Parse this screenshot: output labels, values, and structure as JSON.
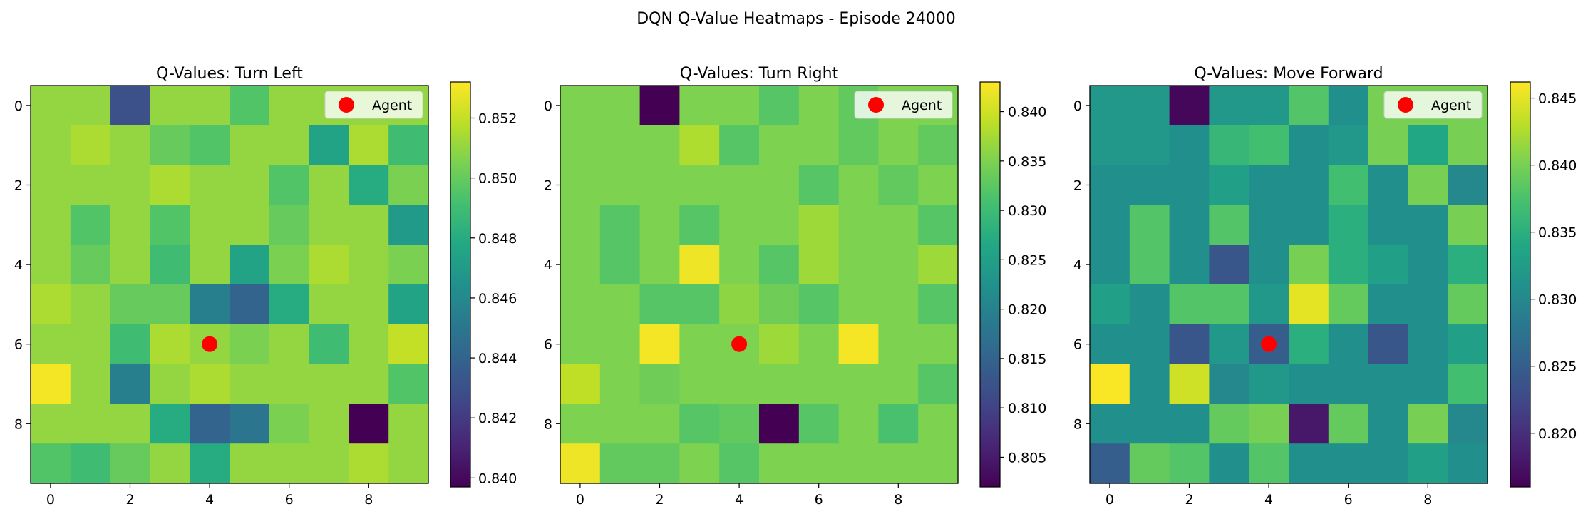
{
  "figure": {
    "title": "DQN Q-Value Heatmaps - Episode 24000"
  },
  "chart_data": [
    {
      "type": "heatmap",
      "title": "Q-Values: Turn Left",
      "colormap": "viridis",
      "grid": false,
      "xlabel": "",
      "ylabel": "",
      "x_ticks": [
        0,
        2,
        4,
        6,
        8
      ],
      "y_ticks": [
        0,
        2,
        4,
        6,
        8
      ],
      "colorbar": {
        "range": [
          0.8397,
          0.8532
        ],
        "ticks": [
          0.84,
          0.842,
          0.844,
          0.846,
          0.848,
          0.85,
          0.852
        ],
        "tick_labels": [
          "0.840",
          "0.842",
          "0.844",
          "0.846",
          "0.848",
          "0.850",
          "0.852"
        ]
      },
      "agent": {
        "row": 6,
        "col": 4,
        "color": "#ff0000"
      },
      "legend": {
        "label": "Agent",
        "placement": "upper-right"
      },
      "values": [
        [
          0.851,
          0.851,
          0.843,
          0.851,
          0.851,
          0.8495,
          0.851,
          0.851,
          0.851,
          0.851
        ],
        [
          0.851,
          0.8515,
          0.851,
          0.85,
          0.8495,
          0.851,
          0.851,
          0.8475,
          0.8515,
          0.849
        ],
        [
          0.851,
          0.851,
          0.851,
          0.8515,
          0.851,
          0.851,
          0.8495,
          0.851,
          0.848,
          0.8505
        ],
        [
          0.851,
          0.8495,
          0.851,
          0.8495,
          0.851,
          0.851,
          0.85,
          0.851,
          0.851,
          0.847
        ],
        [
          0.851,
          0.85,
          0.851,
          0.849,
          0.851,
          0.8475,
          0.8505,
          0.8515,
          0.851,
          0.8505
        ],
        [
          0.8515,
          0.851,
          0.85,
          0.85,
          0.8455,
          0.844,
          0.848,
          0.851,
          0.851,
          0.8475
        ],
        [
          0.851,
          0.851,
          0.849,
          0.8515,
          0.851,
          0.8505,
          0.851,
          0.849,
          0.851,
          0.852
        ],
        [
          0.853,
          0.851,
          0.8455,
          0.851,
          0.8515,
          0.851,
          0.851,
          0.851,
          0.851,
          0.8495
        ],
        [
          0.851,
          0.851,
          0.851,
          0.848,
          0.844,
          0.845,
          0.8505,
          0.851,
          0.8397,
          0.851
        ],
        [
          0.8495,
          0.849,
          0.85,
          0.851,
          0.848,
          0.851,
          0.851,
          0.851,
          0.8515,
          0.851
        ]
      ]
    },
    {
      "type": "heatmap",
      "title": "Q-Values: Turn Right",
      "colormap": "viridis",
      "grid": false,
      "xlabel": "",
      "ylabel": "",
      "x_ticks": [
        0,
        2,
        4,
        6,
        8
      ],
      "y_ticks": [
        0,
        2,
        4,
        6,
        8
      ],
      "colorbar": {
        "range": [
          0.802,
          0.843
        ],
        "ticks": [
          0.805,
          0.81,
          0.815,
          0.82,
          0.825,
          0.83,
          0.835,
          0.84
        ],
        "tick_labels": [
          "0.805",
          "0.810",
          "0.815",
          "0.820",
          "0.825",
          "0.830",
          "0.835",
          "0.840"
        ]
      },
      "agent": {
        "row": 6,
        "col": 4,
        "color": "#ff0000"
      },
      "legend": {
        "label": "Agent",
        "placement": "upper-right"
      },
      "values": [
        [
          0.835,
          0.835,
          0.802,
          0.835,
          0.835,
          0.832,
          0.835,
          0.833,
          0.835,
          0.835
        ],
        [
          0.835,
          0.835,
          0.835,
          0.838,
          0.832,
          0.835,
          0.835,
          0.833,
          0.835,
          0.833
        ],
        [
          0.835,
          0.835,
          0.835,
          0.835,
          0.835,
          0.835,
          0.832,
          0.835,
          0.833,
          0.835
        ],
        [
          0.835,
          0.832,
          0.835,
          0.832,
          0.835,
          0.835,
          0.837,
          0.835,
          0.835,
          0.832
        ],
        [
          0.835,
          0.832,
          0.835,
          0.842,
          0.835,
          0.832,
          0.837,
          0.835,
          0.835,
          0.837
        ],
        [
          0.835,
          0.835,
          0.832,
          0.832,
          0.836,
          0.834,
          0.832,
          0.835,
          0.835,
          0.832
        ],
        [
          0.835,
          0.835,
          0.8425,
          0.835,
          0.835,
          0.837,
          0.835,
          0.8425,
          0.835,
          0.835
        ],
        [
          0.839,
          0.835,
          0.834,
          0.835,
          0.835,
          0.835,
          0.835,
          0.835,
          0.835,
          0.832
        ],
        [
          0.835,
          0.835,
          0.835,
          0.832,
          0.833,
          0.802,
          0.832,
          0.835,
          0.831,
          0.835
        ],
        [
          0.842,
          0.833,
          0.833,
          0.835,
          0.832,
          0.835,
          0.835,
          0.835,
          0.835,
          0.835
        ]
      ]
    },
    {
      "type": "heatmap",
      "title": "Q-Values: Move Forward",
      "colormap": "viridis",
      "grid": false,
      "xlabel": "",
      "ylabel": "",
      "x_ticks": [
        0,
        2,
        4,
        6,
        8
      ],
      "y_ticks": [
        0,
        2,
        4,
        6,
        8
      ],
      "colorbar": {
        "range": [
          0.816,
          0.8462
        ],
        "ticks": [
          0.82,
          0.825,
          0.83,
          0.835,
          0.84,
          0.845
        ],
        "tick_labels": [
          "0.820",
          "0.825",
          "0.830",
          "0.835",
          "0.840",
          "0.845"
        ]
      },
      "agent": {
        "row": 6,
        "col": 4,
        "color": "#ff0000"
      },
      "legend": {
        "label": "Agent",
        "placement": "upper-right"
      },
      "values": [
        [
          0.832,
          0.832,
          0.8165,
          0.832,
          0.832,
          0.838,
          0.831,
          0.84,
          0.84,
          0.84
        ],
        [
          0.832,
          0.832,
          0.831,
          0.836,
          0.837,
          0.831,
          0.832,
          0.84,
          0.834,
          0.84
        ],
        [
          0.831,
          0.831,
          0.831,
          0.833,
          0.831,
          0.831,
          0.837,
          0.831,
          0.84,
          0.83
        ],
        [
          0.831,
          0.838,
          0.831,
          0.838,
          0.831,
          0.831,
          0.835,
          0.831,
          0.831,
          0.84
        ],
        [
          0.831,
          0.838,
          0.831,
          0.824,
          0.831,
          0.84,
          0.835,
          0.833,
          0.831,
          0.835
        ],
        [
          0.833,
          0.831,
          0.838,
          0.838,
          0.832,
          0.845,
          0.839,
          0.831,
          0.831,
          0.839
        ],
        [
          0.831,
          0.831,
          0.824,
          0.832,
          0.825,
          0.835,
          0.831,
          0.824,
          0.831,
          0.833
        ],
        [
          0.846,
          0.831,
          0.844,
          0.83,
          0.832,
          0.831,
          0.831,
          0.831,
          0.831,
          0.837
        ],
        [
          0.831,
          0.831,
          0.831,
          0.839,
          0.84,
          0.818,
          0.839,
          0.831,
          0.84,
          0.83
        ],
        [
          0.825,
          0.839,
          0.838,
          0.831,
          0.838,
          0.831,
          0.831,
          0.831,
          0.833,
          0.831
        ]
      ]
    }
  ]
}
